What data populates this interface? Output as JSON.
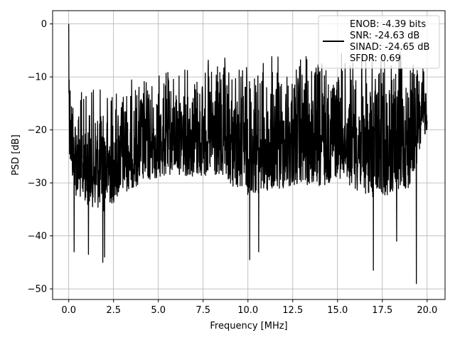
{
  "chart_data": {
    "type": "line",
    "title": "",
    "xlabel": "Frequency [MHz]",
    "ylabel": "PSD [dB]",
    "xlim": [
      -0.9,
      21.0
    ],
    "ylim": [
      -52.0,
      2.5
    ],
    "xticks": [
      0.0,
      2.5,
      5.0,
      7.5,
      10.0,
      12.5,
      15.0,
      17.5,
      20.0
    ],
    "xtick_labels": [
      "0.0",
      "2.5",
      "5.0",
      "7.5",
      "10.0",
      "12.5",
      "15.0",
      "17.5",
      "20.0"
    ],
    "yticks": [
      0,
      -10,
      -20,
      -30,
      -40,
      -50
    ],
    "ytick_labels": [
      "0",
      "−10",
      "−20",
      "−30",
      "−40",
      "−50"
    ],
    "grid": true,
    "legend_position": "upper-right",
    "series": [
      {
        "color": "#000000",
        "envelope": {
          "x": [
            0.0,
            0.05,
            0.3,
            1.0,
            2.0,
            3.0,
            4.0,
            5.0,
            6.0,
            7.0,
            8.0,
            9.0,
            10.0,
            11.0,
            12.0,
            13.0,
            14.0,
            15.0,
            16.0,
            17.0,
            18.0,
            19.0,
            20.0
          ],
          "upper": [
            0.0,
            -3.0,
            -12.0,
            -11.5,
            -10.5,
            -10.0,
            -9.0,
            -8.5,
            -7.5,
            -6.5,
            -6.0,
            -6.0,
            -5.5,
            -5.5,
            -5.0,
            -5.0,
            -5.0,
            -5.0,
            -4.5,
            -4.5,
            -4.5,
            -4.5,
            -8.0
          ],
          "lower": [
            -16.0,
            -30.0,
            -36.0,
            -38.0,
            -40.0,
            -36.0,
            -34.0,
            -33.0,
            -32.0,
            -33.0,
            -33.0,
            -35.0,
            -37.0,
            -37.0,
            -36.0,
            -35.0,
            -36.0,
            -33.0,
            -36.0,
            -38.0,
            -37.0,
            -36.0,
            -22.0
          ]
        },
        "deep_dips": [
          {
            "x": 0.3,
            "y": -43.0
          },
          {
            "x": 1.1,
            "y": -43.5
          },
          {
            "x": 1.9,
            "y": -45.0
          },
          {
            "x": 2.0,
            "y": -44.0
          },
          {
            "x": 10.1,
            "y": -44.5
          },
          {
            "x": 10.6,
            "y": -43.0
          },
          {
            "x": 17.0,
            "y": -46.5
          },
          {
            "x": 18.3,
            "y": -41.0
          },
          {
            "x": 19.4,
            "y": -49.0
          }
        ]
      }
    ],
    "legend": {
      "lines": [
        "ENOB: -4.39 bits",
        "SNR: -24.63 dB",
        "SINAD: -24.65 dB",
        "SFDR: 0.69"
      ]
    }
  }
}
